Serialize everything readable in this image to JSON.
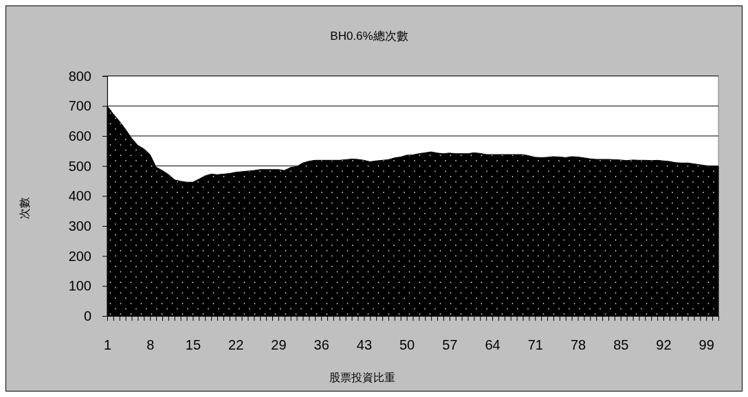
{
  "chart_data": {
    "type": "area",
    "title": "BH0.6%總次數",
    "xlabel": "股票投資比重",
    "ylabel": "次數",
    "categories": [
      "1",
      null,
      null,
      null,
      null,
      null,
      null,
      "8",
      null,
      null,
      null,
      null,
      null,
      null,
      "15",
      null,
      null,
      null,
      null,
      null,
      null,
      "22",
      null,
      null,
      null,
      null,
      null,
      null,
      "29",
      null,
      null,
      null,
      null,
      null,
      null,
      "36",
      null,
      null,
      null,
      null,
      null,
      null,
      "43",
      null,
      null,
      null,
      null,
      null,
      null,
      "50",
      null,
      null,
      null,
      null,
      null,
      null,
      "57",
      null,
      null,
      null,
      null,
      null,
      null,
      "64",
      null,
      null,
      null,
      null,
      null,
      null,
      "71",
      null,
      null,
      null,
      null,
      null,
      null,
      "78",
      null,
      null,
      null,
      null,
      null,
      null,
      "85",
      null,
      null,
      null,
      null,
      null,
      null,
      "92",
      null,
      null,
      null,
      null,
      null,
      null,
      "99",
      null,
      null
    ],
    "values": [
      700,
      673,
      649,
      622,
      592,
      569,
      557,
      538,
      496,
      485,
      472,
      454,
      449,
      446,
      446,
      456,
      467,
      473,
      471,
      473,
      475,
      479,
      481,
      483,
      485,
      488,
      488,
      488,
      488,
      485,
      495,
      498,
      510,
      516,
      519,
      519,
      519,
      519,
      519,
      521,
      523,
      522,
      519,
      514,
      517,
      519,
      521,
      527,
      530,
      536,
      537,
      541,
      544,
      547,
      543,
      541,
      543,
      541,
      541,
      541,
      544,
      542,
      538,
      538,
      538,
      538,
      538,
      538,
      538,
      534,
      529,
      528,
      529,
      531,
      530,
      528,
      531,
      530,
      527,
      524,
      522,
      522,
      522,
      521,
      520,
      518,
      520,
      519,
      519,
      518,
      519,
      517,
      515,
      511,
      510,
      510,
      507,
      504,
      501,
      500,
      499
    ],
    "color": "#000000",
    "ylim": [
      0,
      800
    ],
    "yticks": [
      0,
      100,
      200,
      300,
      400,
      500,
      600,
      700,
      800
    ],
    "grid": "y"
  }
}
